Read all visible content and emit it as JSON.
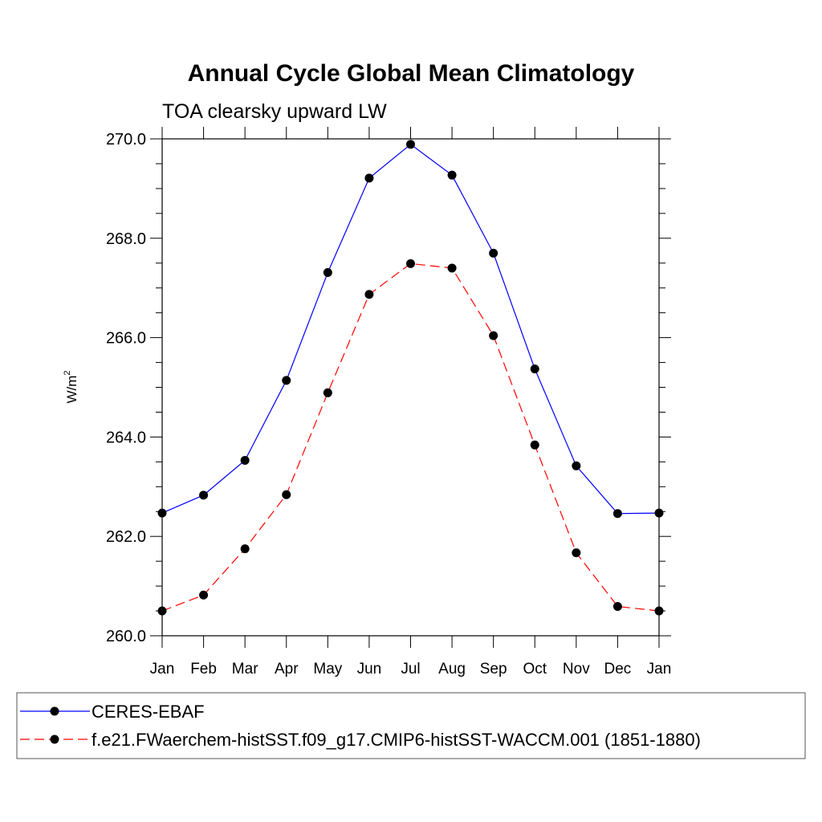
{
  "chart_data": {
    "type": "line",
    "title": "Annual Cycle Global Mean Climatology",
    "subtitle": "TOA clearsky upward LW",
    "ylabel": "W/m",
    "ylabel_sup": "2",
    "xlabel": "",
    "ylim": [
      260.0,
      270.0
    ],
    "yticks": [
      "260.0",
      "262.0",
      "264.0",
      "266.0",
      "268.0",
      "270.0"
    ],
    "categories": [
      "Jan",
      "Feb",
      "Mar",
      "Apr",
      "May",
      "Jun",
      "Jul",
      "Aug",
      "Sep",
      "Oct",
      "Nov",
      "Dec",
      "Jan"
    ],
    "series": [
      {
        "name": "CERES-EBAF",
        "color": "#0000ff",
        "dashed": false,
        "values": [
          262.47,
          262.83,
          263.53,
          265.14,
          267.31,
          269.21,
          269.89,
          269.27,
          267.7,
          265.37,
          263.42,
          262.46,
          262.47
        ]
      },
      {
        "name": "f.e21.FWaerchem-histSST.f09_g17.CMIP6-histSST-WACCM.001 (1851-1880)",
        "color": "#ff0000",
        "dashed": true,
        "values": [
          260.5,
          260.82,
          261.75,
          262.84,
          264.89,
          266.87,
          267.49,
          267.4,
          266.04,
          263.84,
          261.67,
          260.59,
          260.5
        ]
      }
    ],
    "legend_position": "bottom"
  }
}
